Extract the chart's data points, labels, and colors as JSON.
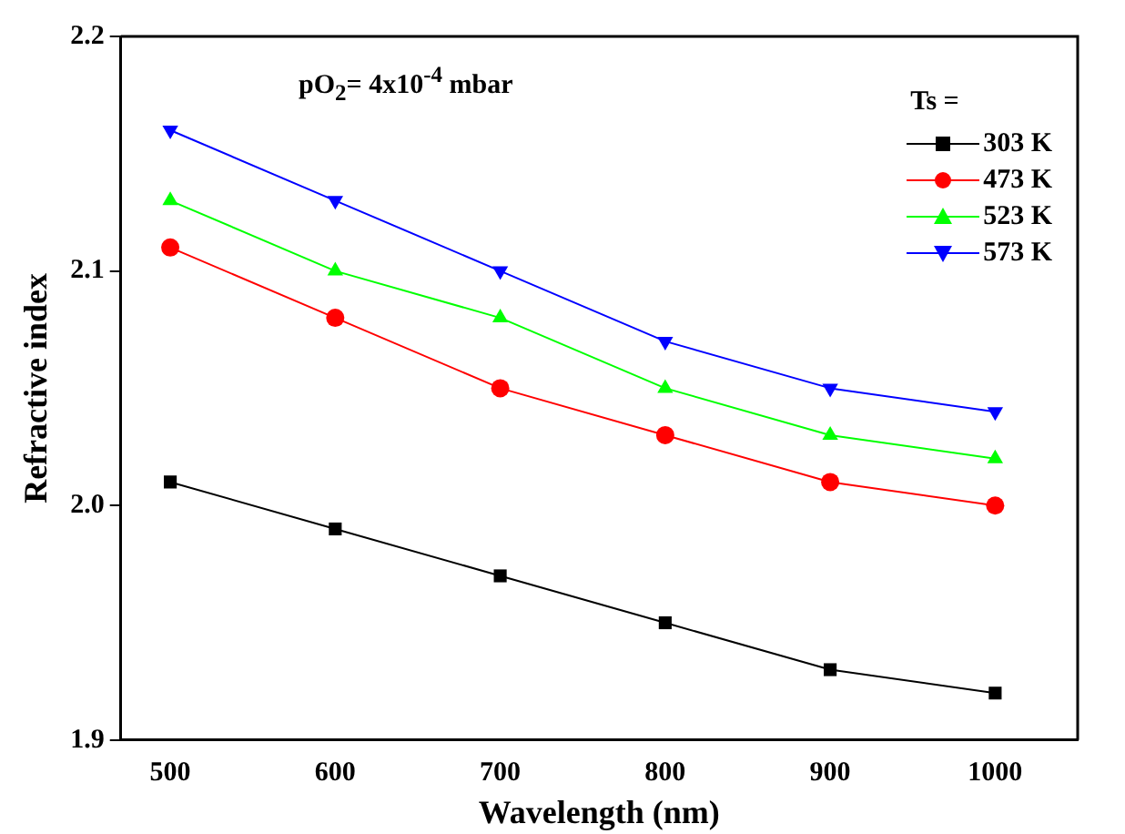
{
  "chart_data": {
    "type": "line",
    "xlabel": "Wavelength (nm)",
    "ylabel": "Refractive index",
    "legend_title": "Ts =",
    "legend": "top right",
    "annotations": [
      "pO$_{2}$= 4x10$^{-4}$ mbar"
    ],
    "x": [
      500,
      600,
      700,
      800,
      900,
      1000
    ],
    "xlim": [
      470,
      1050
    ],
    "xticks": [
      500,
      600,
      700,
      800,
      900,
      1000
    ],
    "ylim": [
      1.9,
      2.2
    ],
    "yticks": [
      1.9,
      {
        "value": 2.0,
        "label": "2.0"
      },
      2.1,
      2.2
    ],
    "grid": false,
    "series": [
      {
        "name": "303 K",
        "color": "#000000",
        "marker": "square",
        "values": [
          2.01,
          1.99,
          1.97,
          1.95,
          1.93,
          1.92
        ]
      },
      {
        "name": "473 K",
        "color": "#ff0000",
        "marker": "circle",
        "values": [
          2.11,
          2.08,
          2.05,
          2.03,
          2.01,
          2.0
        ]
      },
      {
        "name": "523 K",
        "color": "#00ff00",
        "marker": "triangle",
        "values": [
          2.13,
          2.1,
          2.08,
          2.05,
          2.03,
          2.02
        ]
      },
      {
        "name": "573 K",
        "color": "#0000ff",
        "marker": "triangle-down",
        "values": [
          2.16,
          2.13,
          2.1,
          2.07,
          2.05,
          2.04
        ]
      }
    ]
  }
}
